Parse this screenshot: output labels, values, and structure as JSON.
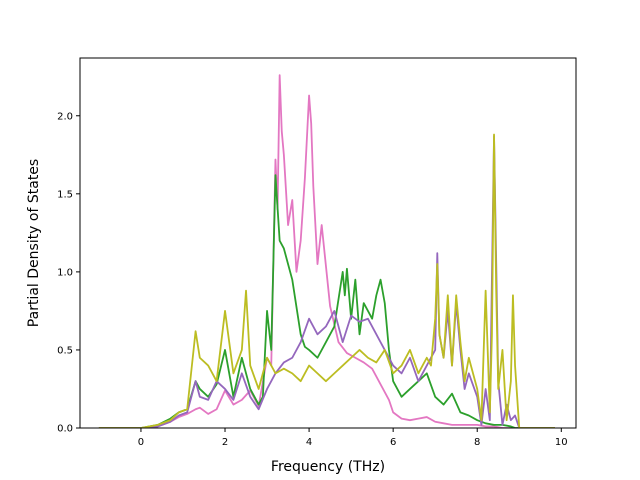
{
  "chart_data": {
    "type": "line",
    "title": "",
    "xlabel": "Frequency (THz)",
    "ylabel": "Partial Density of States",
    "xlim": [
      -1.45,
      10.35
    ],
    "ylim": [
      0.0,
      2.37
    ],
    "xticks": [
      0,
      2,
      4,
      6,
      8,
      10
    ],
    "yticks": [
      0.0,
      0.5,
      1.0,
      1.5,
      2.0
    ],
    "xtick_labels": [
      "0",
      "2",
      "4",
      "6",
      "8",
      "10"
    ],
    "ytick_labels": [
      "0.0",
      "0.5",
      "1.0",
      "1.5",
      "2.0"
    ],
    "grid": false,
    "legend": "none",
    "series": [
      {
        "color": "#e377c2",
        "x": [
          -1.0,
          0.0,
          0.4,
          0.7,
          0.9,
          1.1,
          1.3,
          1.4,
          1.6,
          1.8,
          2.0,
          2.2,
          2.4,
          2.6,
          2.8,
          3.0,
          3.1,
          3.2,
          3.25,
          3.3,
          3.35,
          3.4,
          3.5,
          3.6,
          3.7,
          3.8,
          3.9,
          4.0,
          4.05,
          4.1,
          4.2,
          4.3,
          4.5,
          4.7,
          4.9,
          5.1,
          5.3,
          5.5,
          5.7,
          5.9,
          6.0,
          6.2,
          6.4,
          6.6,
          6.8,
          7.0,
          7.2,
          7.4,
          7.6,
          7.8,
          8.0,
          8.2,
          8.4,
          8.6,
          8.8,
          8.9,
          9.0,
          9.5,
          9.85
        ],
        "y": [
          0.0,
          0.0,
          0.01,
          0.04,
          0.07,
          0.09,
          0.12,
          0.13,
          0.09,
          0.12,
          0.24,
          0.15,
          0.18,
          0.24,
          0.14,
          0.45,
          0.4,
          1.72,
          1.4,
          2.26,
          1.9,
          1.75,
          1.3,
          1.46,
          1.0,
          1.2,
          1.6,
          2.13,
          1.95,
          1.55,
          1.05,
          1.3,
          0.78,
          0.55,
          0.48,
          0.45,
          0.42,
          0.38,
          0.28,
          0.18,
          0.1,
          0.06,
          0.05,
          0.06,
          0.07,
          0.04,
          0.03,
          0.02,
          0.02,
          0.02,
          0.02,
          0.01,
          0.01,
          0.0,
          0.0,
          0.0,
          0.0,
          0.0,
          0.0
        ]
      },
      {
        "color": "#2ca02c",
        "x": [
          -1.0,
          0.0,
          0.4,
          0.7,
          0.9,
          1.1,
          1.3,
          1.4,
          1.6,
          1.8,
          2.0,
          2.2,
          2.4,
          2.6,
          2.8,
          2.9,
          3.0,
          3.1,
          3.2,
          3.3,
          3.4,
          3.5,
          3.6,
          3.8,
          3.9,
          4.0,
          4.2,
          4.4,
          4.6,
          4.8,
          4.85,
          4.9,
          5.0,
          5.1,
          5.2,
          5.3,
          5.5,
          5.6,
          5.7,
          5.8,
          5.9,
          6.0,
          6.2,
          6.4,
          6.6,
          6.8,
          7.0,
          7.2,
          7.4,
          7.6,
          7.8,
          8.0,
          8.2,
          8.4,
          8.6,
          8.8,
          8.9,
          9.0,
          9.5,
          9.85
        ],
        "y": [
          0.0,
          0.0,
          0.02,
          0.06,
          0.1,
          0.12,
          0.3,
          0.25,
          0.2,
          0.28,
          0.5,
          0.2,
          0.45,
          0.25,
          0.15,
          0.2,
          0.75,
          0.5,
          1.62,
          1.2,
          1.15,
          1.05,
          0.95,
          0.6,
          0.52,
          0.5,
          0.45,
          0.55,
          0.65,
          1.0,
          0.85,
          1.02,
          0.7,
          0.95,
          0.6,
          0.8,
          0.7,
          0.85,
          0.95,
          0.8,
          0.5,
          0.3,
          0.2,
          0.25,
          0.3,
          0.35,
          0.2,
          0.15,
          0.22,
          0.1,
          0.08,
          0.05,
          0.03,
          0.02,
          0.02,
          0.01,
          0.0,
          0.0,
          0.0,
          0.0
        ]
      },
      {
        "color": "#9467bd",
        "x": [
          -1.0,
          0.0,
          0.4,
          0.7,
          0.9,
          1.1,
          1.3,
          1.4,
          1.6,
          1.8,
          2.0,
          2.2,
          2.4,
          2.6,
          2.8,
          3.0,
          3.2,
          3.4,
          3.6,
          3.8,
          4.0,
          4.2,
          4.4,
          4.6,
          4.8,
          5.0,
          5.2,
          5.4,
          5.6,
          5.8,
          6.0,
          6.2,
          6.4,
          6.6,
          6.8,
          7.0,
          7.05,
          7.1,
          7.2,
          7.3,
          7.4,
          7.5,
          7.6,
          7.7,
          7.8,
          8.0,
          8.1,
          8.2,
          8.3,
          8.4,
          8.5,
          8.6,
          8.7,
          8.8,
          8.9,
          9.0,
          9.5,
          9.85
        ],
        "y": [
          0.0,
          0.0,
          0.01,
          0.04,
          0.08,
          0.1,
          0.3,
          0.2,
          0.18,
          0.3,
          0.25,
          0.18,
          0.35,
          0.2,
          0.12,
          0.25,
          0.35,
          0.42,
          0.45,
          0.55,
          0.7,
          0.6,
          0.65,
          0.75,
          0.55,
          0.72,
          0.68,
          0.7,
          0.6,
          0.5,
          0.4,
          0.35,
          0.45,
          0.3,
          0.4,
          0.5,
          1.12,
          0.6,
          0.45,
          0.75,
          0.4,
          0.8,
          0.5,
          0.25,
          0.35,
          0.2,
          0.02,
          0.25,
          0.05,
          1.87,
          0.3,
          0.02,
          0.15,
          0.05,
          0.08,
          0.0,
          0.0,
          0.0
        ]
      },
      {
        "color": "#bcbd22",
        "x": [
          -1.0,
          0.0,
          0.4,
          0.7,
          0.9,
          1.1,
          1.3,
          1.4,
          1.6,
          1.8,
          2.0,
          2.2,
          2.4,
          2.5,
          2.6,
          2.8,
          3.0,
          3.2,
          3.4,
          3.6,
          3.8,
          4.0,
          4.2,
          4.4,
          4.6,
          4.8,
          5.0,
          5.2,
          5.4,
          5.6,
          5.8,
          6.0,
          6.2,
          6.4,
          6.6,
          6.8,
          6.9,
          7.0,
          7.05,
          7.1,
          7.2,
          7.3,
          7.4,
          7.5,
          7.6,
          7.7,
          7.8,
          8.0,
          8.1,
          8.2,
          8.3,
          8.35,
          8.4,
          8.45,
          8.5,
          8.6,
          8.7,
          8.8,
          8.85,
          8.9,
          9.0,
          9.5,
          9.85
        ],
        "y": [
          0.0,
          0.0,
          0.02,
          0.05,
          0.1,
          0.12,
          0.62,
          0.45,
          0.4,
          0.3,
          0.75,
          0.35,
          0.5,
          0.88,
          0.4,
          0.25,
          0.45,
          0.35,
          0.38,
          0.35,
          0.3,
          0.4,
          0.35,
          0.3,
          0.35,
          0.4,
          0.45,
          0.5,
          0.45,
          0.42,
          0.5,
          0.35,
          0.4,
          0.5,
          0.35,
          0.45,
          0.4,
          0.7,
          1.05,
          0.6,
          0.45,
          0.85,
          0.4,
          0.85,
          0.55,
          0.3,
          0.45,
          0.25,
          0.05,
          0.88,
          0.1,
          0.6,
          1.88,
          0.9,
          0.25,
          0.5,
          0.05,
          0.3,
          0.85,
          0.4,
          0.0,
          0.0,
          0.0
        ]
      }
    ]
  }
}
